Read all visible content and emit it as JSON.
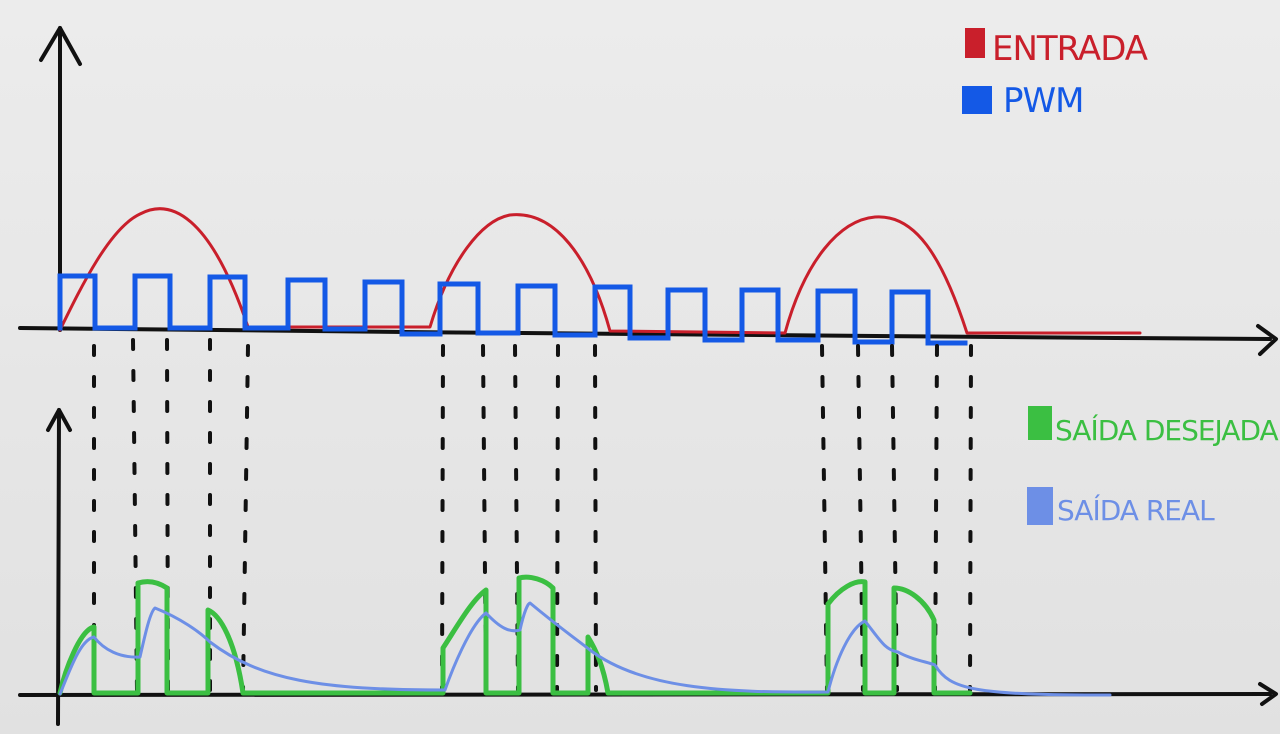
{
  "legend_top": [
    {
      "label": "ENTRADA",
      "color": "#c91f2b"
    },
    {
      "label": "PWM",
      "color": "#1459e6"
    }
  ],
  "legend_bottom": [
    {
      "label": "SAÍDA DESEJADA",
      "color": "#3bbf42"
    },
    {
      "label": "SAÍDA REAL",
      "color": "#6d8fe6"
    }
  ],
  "colors": {
    "axis": "#111111",
    "background": "#e8e8e8"
  }
}
